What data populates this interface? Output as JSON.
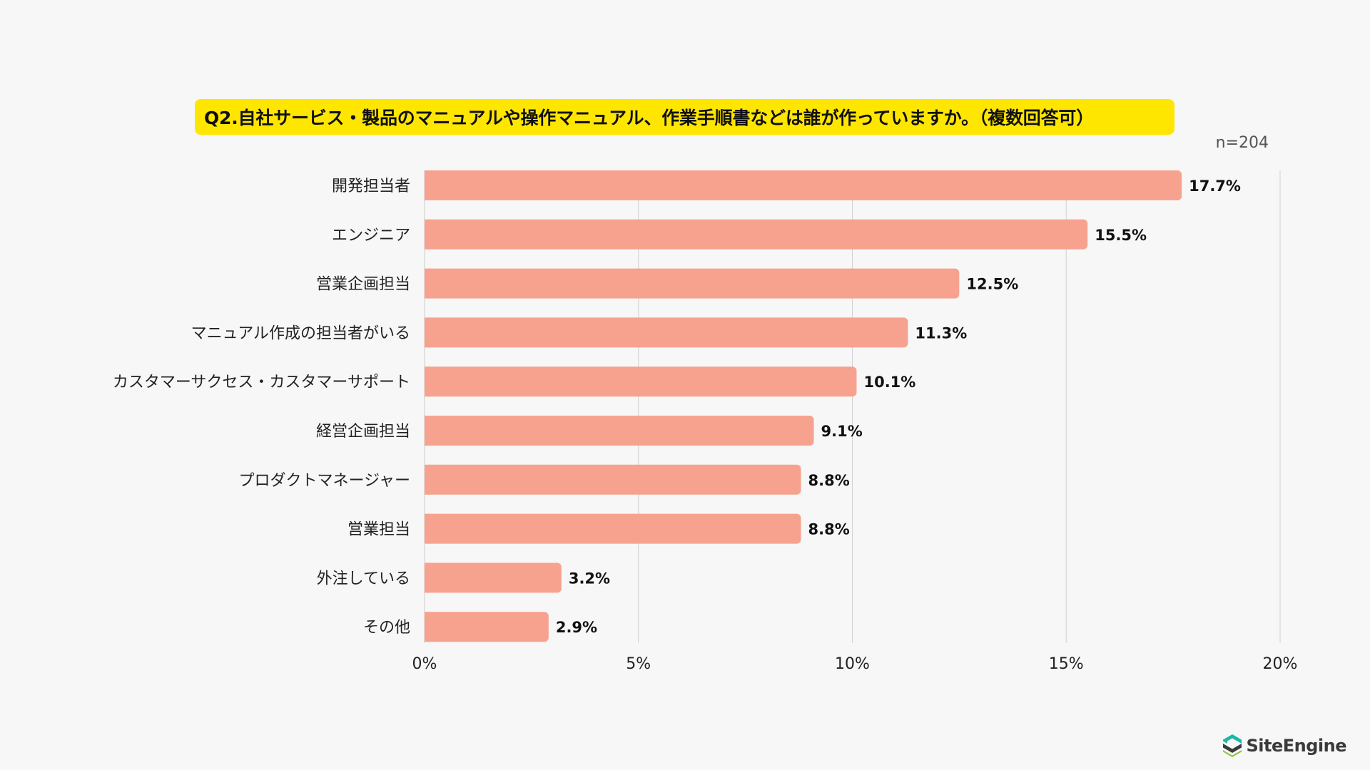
{
  "title": "Q2.自社サービス・製品のマニュアルや操作マニュアル、作業手順書などは誰が作っていますか。（複数回答可）",
  "sample_size": "n=204",
  "logo": {
    "text": "SiteEngine",
    "icon": "siteengine-logo-icon"
  },
  "colors": {
    "bar": "#f7a28f",
    "title_background": "#ffe600",
    "grid": "#d0d0d0"
  },
  "chart_data": {
    "type": "bar",
    "orientation": "horizontal",
    "categories": [
      "開発担当者",
      "エンジニア",
      "営業企画担当",
      "マニュアル作成の担当者がいる",
      "カスタマーサクセス・カスタマーサポート",
      "経営企画担当",
      "プロダクトマネージャー",
      "営業担当",
      "外注している",
      "その他"
    ],
    "values": [
      17.7,
      15.5,
      12.5,
      11.3,
      10.1,
      9.1,
      8.8,
      8.8,
      3.2,
      2.9
    ],
    "value_labels": [
      "17.7%",
      "15.5%",
      "12.5%",
      "11.3%",
      "10.1%",
      "9.1%",
      "8.8%",
      "8.8%",
      "3.2%",
      "2.9%"
    ],
    "xlim": [
      0,
      20
    ],
    "x_ticks": [
      0,
      5,
      10,
      15,
      20
    ],
    "x_tick_labels": [
      "0%",
      "5%",
      "10%",
      "15%",
      "20%"
    ],
    "grid": true,
    "legend": "none"
  }
}
